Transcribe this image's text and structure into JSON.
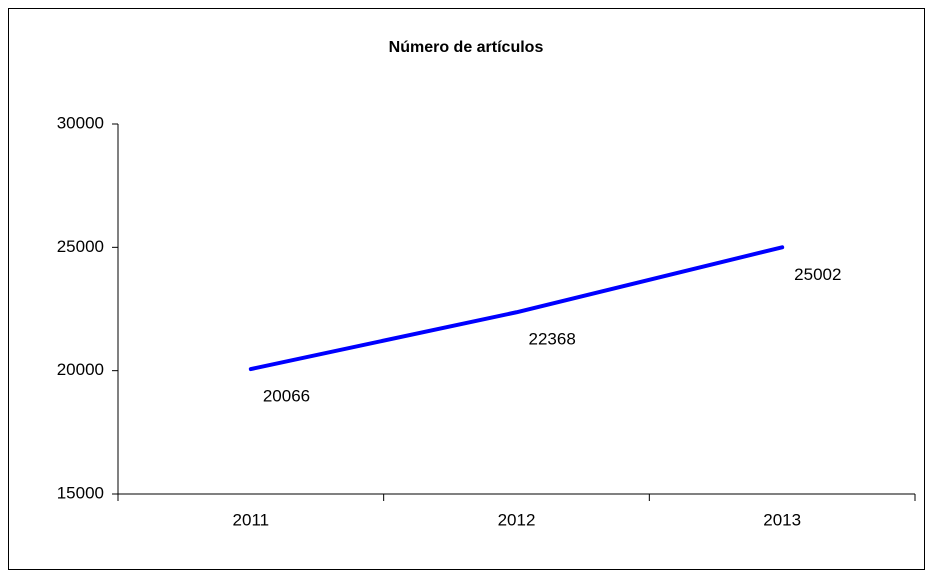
{
  "chart_data": {
    "type": "line",
    "title": "Número de artículos",
    "categories": [
      "2011",
      "2012",
      "2013"
    ],
    "series": [
      {
        "name": "Número de artículos",
        "color": "#0000ff",
        "values": [
          20066,
          22368,
          25002
        ]
      }
    ],
    "ylim": [
      15000,
      30000
    ],
    "yticks": [
      15000,
      20000,
      25000,
      30000
    ],
    "grid": false
  }
}
